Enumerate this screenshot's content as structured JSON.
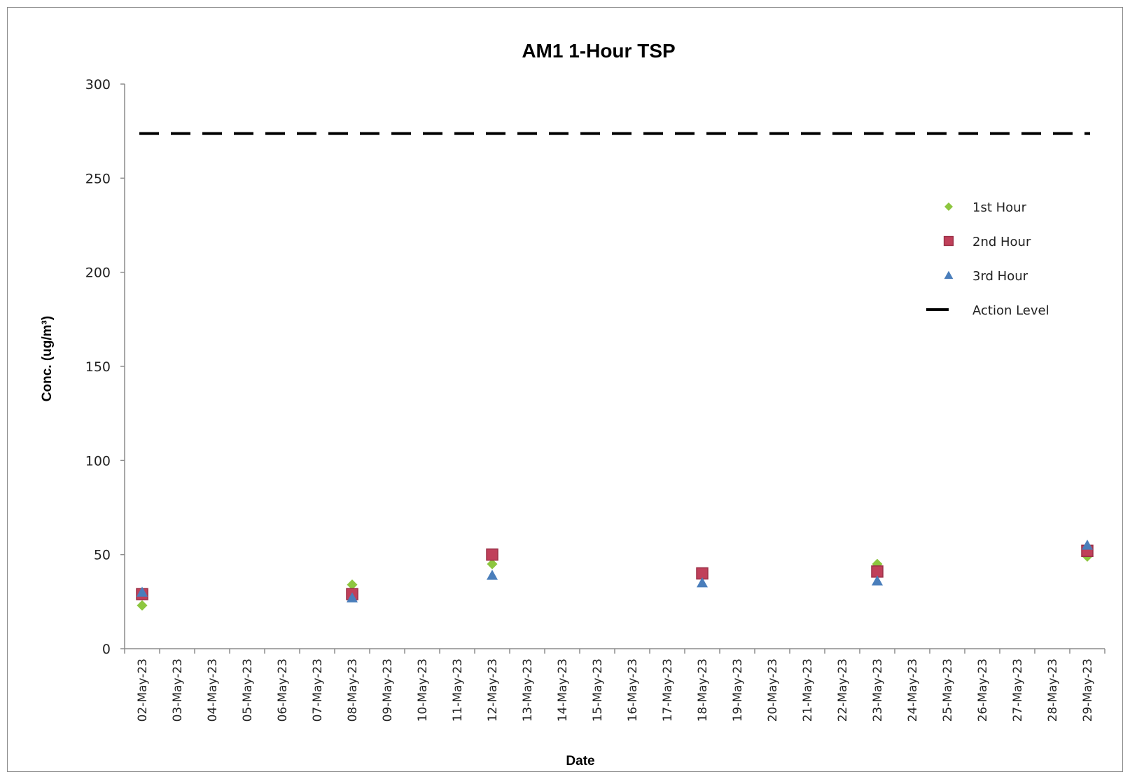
{
  "chart_data": {
    "type": "scatter",
    "title": "AM1 1-Hour TSP",
    "xlabel": "Date",
    "ylabel": "Conc. (ug/m³)",
    "ylim": [
      0,
      300
    ],
    "yticks": [
      "0",
      "50",
      "100",
      "150",
      "200",
      "250",
      "300"
    ],
    "categories": [
      "02-May-23",
      "03-May-23",
      "04-May-23",
      "05-May-23",
      "06-May-23",
      "07-May-23",
      "08-May-23",
      "09-May-23",
      "10-May-23",
      "11-May-23",
      "12-May-23",
      "13-May-23",
      "14-May-23",
      "15-May-23",
      "16-May-23",
      "17-May-23",
      "18-May-23",
      "19-May-23",
      "20-May-23",
      "21-May-23",
      "22-May-23",
      "23-May-23",
      "24-May-23",
      "25-May-23",
      "26-May-23",
      "27-May-23",
      "28-May-23",
      "29-May-23"
    ],
    "grid": false,
    "legend_position": "right",
    "series": [
      {
        "name": "1st Hour",
        "marker": "diamond",
        "color": "#8dc63f",
        "points": [
          {
            "x": "02-May-23",
            "y": 23
          },
          {
            "x": "08-May-23",
            "y": 34
          },
          {
            "x": "12-May-23",
            "y": 45
          },
          {
            "x": "18-May-23",
            "y": 39
          },
          {
            "x": "23-May-23",
            "y": 45
          },
          {
            "x": "29-May-23",
            "y": 49
          }
        ]
      },
      {
        "name": "2nd Hour",
        "marker": "square",
        "color": "#c0405a",
        "points": [
          {
            "x": "02-May-23",
            "y": 29
          },
          {
            "x": "08-May-23",
            "y": 29
          },
          {
            "x": "12-May-23",
            "y": 50
          },
          {
            "x": "18-May-23",
            "y": 40
          },
          {
            "x": "23-May-23",
            "y": 41
          },
          {
            "x": "29-May-23",
            "y": 52
          }
        ]
      },
      {
        "name": "3rd Hour",
        "marker": "triangle",
        "color": "#4a7ebb",
        "points": [
          {
            "x": "02-May-23",
            "y": 30
          },
          {
            "x": "08-May-23",
            "y": 27
          },
          {
            "x": "12-May-23",
            "y": 39
          },
          {
            "x": "18-May-23",
            "y": 35
          },
          {
            "x": "23-May-23",
            "y": 36
          },
          {
            "x": "29-May-23",
            "y": 55
          }
        ]
      },
      {
        "name": "Action Level",
        "marker": "dashed-line",
        "color": "#000000",
        "y": 273.7
      }
    ]
  }
}
